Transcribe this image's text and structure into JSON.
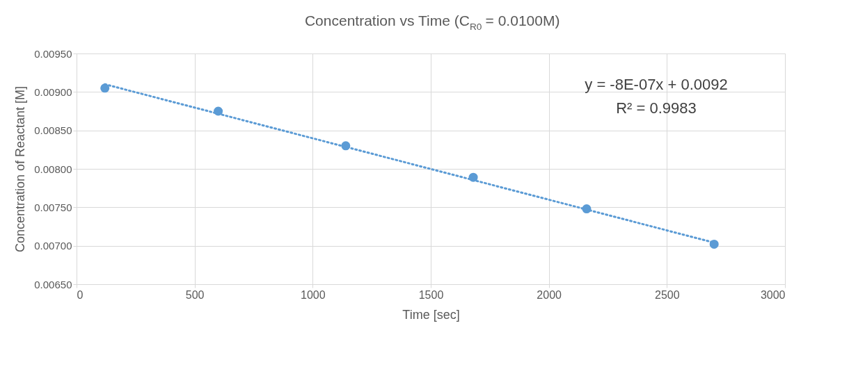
{
  "chart_data": {
    "type": "scatter",
    "title": "Concentration vs Time (C$_{R0}$ = 0.0100M)",
    "xlabel": "Time [sec]",
    "ylabel": "Concentration of Reactant [M]",
    "x": [
      120,
      600,
      1140,
      1680,
      2160,
      2700
    ],
    "series": [
      {
        "color": "#5b9bd5",
        "marker": "circle",
        "values": [
          0.00905,
          0.00875,
          0.0083,
          0.00789,
          0.00748,
          0.00702
        ]
      },
      {
        "type": "line",
        "color": "#5b9bd5",
        "line_style": "dotted",
        "x": [
          120,
          2700
        ],
        "values": [
          0.0091,
          0.00704
        ]
      }
    ],
    "annotations": [
      "y = -8E-07x + 0.0092",
      "R² = 0.9983"
    ],
    "xlim": [
      0,
      3000
    ],
    "xticks": [
      0,
      500,
      1000,
      1500,
      2000,
      2500,
      3000
    ],
    "ylim": [
      0.0065,
      0.0095
    ],
    "yticks": [
      {
        "value": 0.0065,
        "label": "0.00650"
      },
      {
        "value": 0.007,
        "label": "0.00700"
      },
      {
        "value": 0.0075,
        "label": "0.00750"
      },
      {
        "value": 0.008,
        "label": "0.00800"
      },
      {
        "value": 0.0085,
        "label": "0.00850"
      },
      {
        "value": 0.009,
        "label": "0.00900"
      },
      {
        "value": 0.0095,
        "label": "0.00950"
      }
    ],
    "grid": true
  }
}
